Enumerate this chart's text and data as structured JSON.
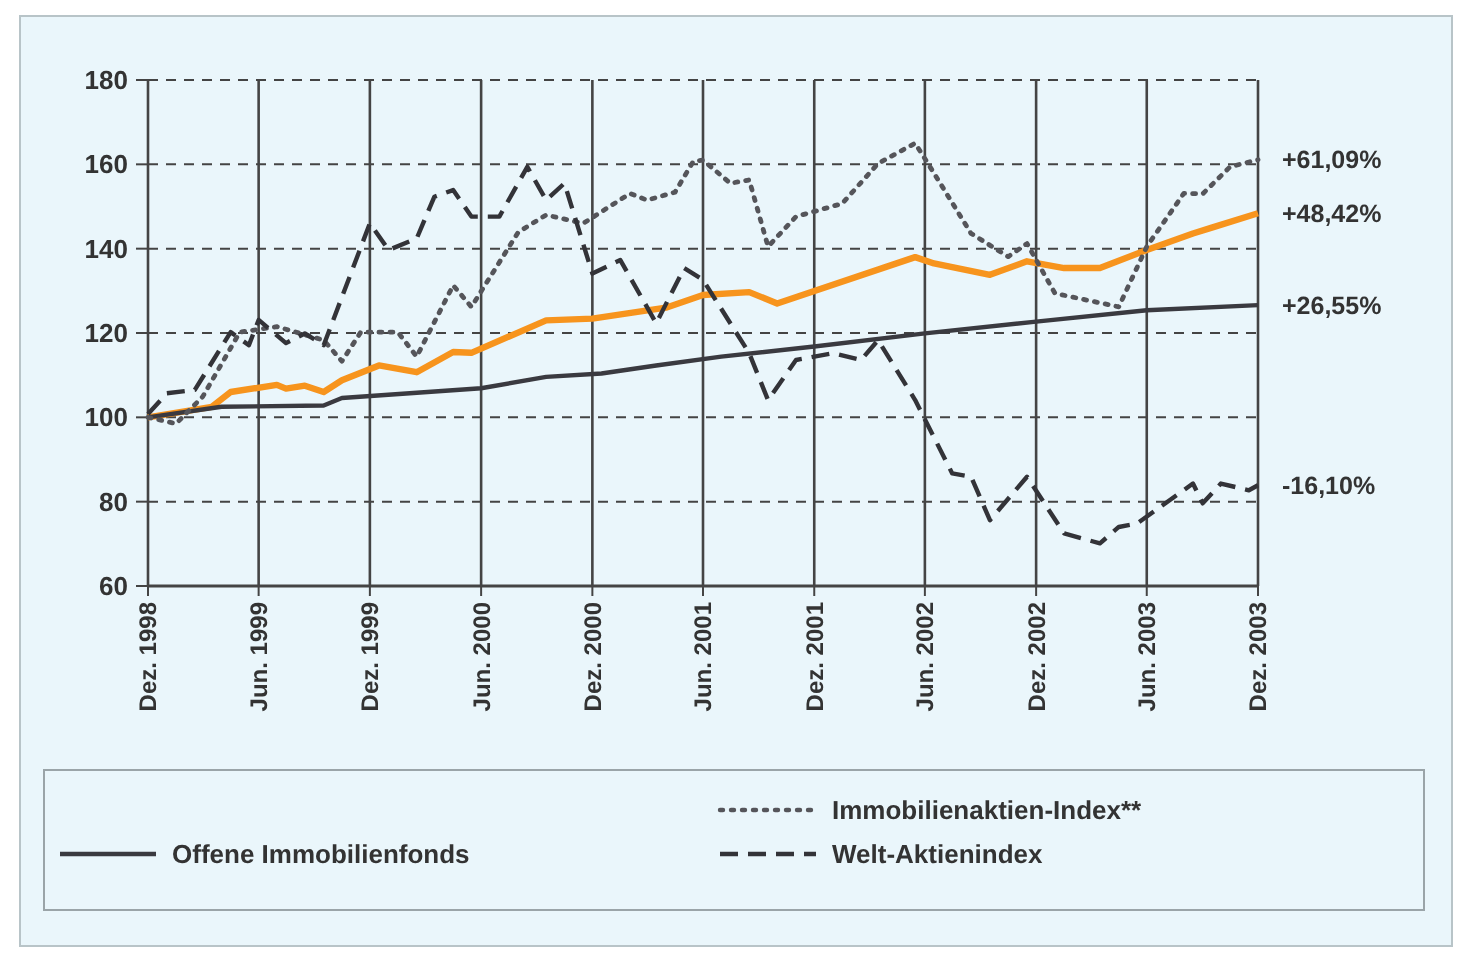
{
  "chart_data": {
    "type": "line",
    "xlim": [
      "1998-12",
      "2003-12"
    ],
    "xticks": [
      {
        "value": "1998-12",
        "label": "Dez. 1998"
      },
      {
        "value": "1999-06",
        "label": "Jun. 1999"
      },
      {
        "value": "1999-12",
        "label": "Dez. 1999"
      },
      {
        "value": "2000-06",
        "label": "Jun. 2000"
      },
      {
        "value": "2000-12",
        "label": "Dez. 2000"
      },
      {
        "value": "2001-06",
        "label": "Jun. 2001"
      },
      {
        "value": "2001-12",
        "label": "Dez. 2001"
      },
      {
        "value": "2002-06",
        "label": "Jun. 2002"
      },
      {
        "value": "2002-12",
        "label": "Dez. 2002"
      },
      {
        "value": "2003-06",
        "label": "Jun. 2003"
      },
      {
        "value": "2003-12",
        "label": "Dez. 2003"
      }
    ],
    "ylim": [
      60,
      180
    ],
    "yticks": [
      60,
      80,
      100,
      120,
      140,
      160,
      180
    ],
    "grid": true,
    "legend": "bottom",
    "series": [
      {
        "color": "#f7941d",
        "line_style": "solid",
        "x": [
          "1998-12-01",
          "1999-03-16",
          "1999-04-16",
          "1999-07-01",
          "1999-07-16",
          "1999-08-16",
          "1999-09-16",
          "1999-10-16",
          "1999-12-16",
          "2000-02-16",
          "2000-04-16",
          "2000-05-16",
          "2000-09-16",
          "2000-12-01",
          "2001-04-01",
          "2001-06-01",
          "2001-08-16",
          "2001-10-01",
          "2002-05-16",
          "2002-06-16",
          "2002-09-16",
          "2002-11-16",
          "2003-01-16",
          "2003-03-16",
          "2003-06-01",
          "2003-08-16",
          "2003-09-16",
          "2003-12-01"
        ],
        "values": [
          100,
          102.5,
          106,
          107.7,
          106.8,
          107.5,
          106,
          108.8,
          112.3,
          110.7,
          115.5,
          115.3,
          123,
          123.4,
          126,
          129,
          129.7,
          127,
          138,
          136.5,
          133.8,
          137,
          135.4,
          135.4,
          139.7,
          143.6,
          145,
          148.4
        ]
      },
      {
        "name": "Offene Immobilienfonds",
        "color": "#3a3a40",
        "line_style": "solid",
        "x": [
          "1998-12-01",
          "1999-04-01",
          "1999-09-16",
          "1999-10-16",
          "2000-06-01",
          "2000-09-16",
          "2000-12-16",
          "2001-03-16",
          "2001-07-01",
          "2001-12-01",
          "2002-06-01",
          "2002-12-01",
          "2003-06-01",
          "2003-12-01"
        ],
        "values": [
          100,
          102.5,
          102.8,
          104.6,
          106.9,
          109.6,
          110.4,
          112.3,
          114.4,
          116.8,
          119.9,
          122.7,
          125.4,
          126.6
        ]
      },
      {
        "name": "Immobilienaktien-Index**",
        "color": "#55555a",
        "line_style": "dotted",
        "x": [
          "1998-12-01",
          "1999-01-16",
          "1999-03-01",
          "1999-05-01",
          "1999-07-01",
          "1999-09-16",
          "1999-10-16",
          "1999-11-16",
          "2000-01-16",
          "2000-02-16",
          "2000-04-16",
          "2000-05-16",
          "2000-08-01",
          "2000-09-16",
          "2000-11-16",
          "2001-02-01",
          "2001-03-01",
          "2001-04-16",
          "2001-05-16",
          "2001-06-01",
          "2001-07-16",
          "2001-08-16",
          "2001-09-16",
          "2001-11-01",
          "2002-01-16",
          "2002-03-16",
          "2002-05-16",
          "2002-06-16",
          "2002-08-16",
          "2002-10-16",
          "2002-11-16",
          "2003-01-01",
          "2003-04-16",
          "2003-06-01",
          "2003-08-01",
          "2003-09-01",
          "2003-10-16",
          "2003-12-01"
        ],
        "values": [
          100,
          98.5,
          104.9,
          120.2,
          121.5,
          118.3,
          113.3,
          120.2,
          120.2,
          114.4,
          131.3,
          126.2,
          143.9,
          148,
          146,
          153.1,
          151.5,
          153.4,
          160.7,
          161,
          155.5,
          156.3,
          140.5,
          147.6,
          150.7,
          160.2,
          165,
          157.9,
          143.6,
          138.1,
          141.2,
          129.4,
          126.2,
          140.5,
          153.1,
          153,
          159.4,
          161.1
        ]
      },
      {
        "name": "Welt-Aktienindex",
        "color": "#333338",
        "line_style": "dashed",
        "x": [
          "1998-12-01",
          "1999-01-01",
          "1999-02-16",
          "1999-04-16",
          "1999-05-16",
          "1999-06-01",
          "1999-07-16",
          "1999-08-16",
          "1999-09-16",
          "1999-12-01",
          "2000-01-01",
          "2000-02-16",
          "2000-03-16",
          "2000-04-16",
          "2000-05-16",
          "2000-07-01",
          "2000-08-16",
          "2000-09-16",
          "2000-10-16",
          "2000-12-01",
          "2001-01-16",
          "2001-03-16",
          "2001-05-01",
          "2001-06-01",
          "2001-08-16",
          "2001-09-16",
          "2001-11-01",
          "2002-01-01",
          "2002-02-16",
          "2002-03-16",
          "2002-05-16",
          "2002-07-16",
          "2002-08-16",
          "2002-09-16",
          "2002-11-16",
          "2003-01-16",
          "2003-03-16",
          "2003-04-16",
          "2003-05-16",
          "2003-08-16",
          "2003-09-01",
          "2003-10-01",
          "2003-11-16",
          "2003-12-01"
        ],
        "values": [
          100.8,
          105.7,
          106.5,
          120.2,
          117.1,
          123.1,
          117.6,
          119.9,
          117.1,
          146,
          139.7,
          142.4,
          152.3,
          153.9,
          147.6,
          147.6,
          159.4,
          151.5,
          155.5,
          134.1,
          137.3,
          122.3,
          135.4,
          132.6,
          115.2,
          104.1,
          113.6,
          115.2,
          113.6,
          118.3,
          104.1,
          86.7,
          85.9,
          75.6,
          85.9,
          72.5,
          70.1,
          74,
          74.8,
          84.3,
          79.6,
          84.3,
          82.7,
          83.9
        ]
      }
    ],
    "annotations": [
      {
        "text": "+61,09%",
        "x": "2003-12",
        "y": 161.1
      },
      {
        "text": "+48,42%",
        "x": "2003-12",
        "y": 148.4
      },
      {
        "text": "+26,55%",
        "x": "2003-12",
        "y": 126.6
      },
      {
        "text": "-16,10%",
        "x": "2003-12",
        "y": 83.9
      }
    ]
  }
}
